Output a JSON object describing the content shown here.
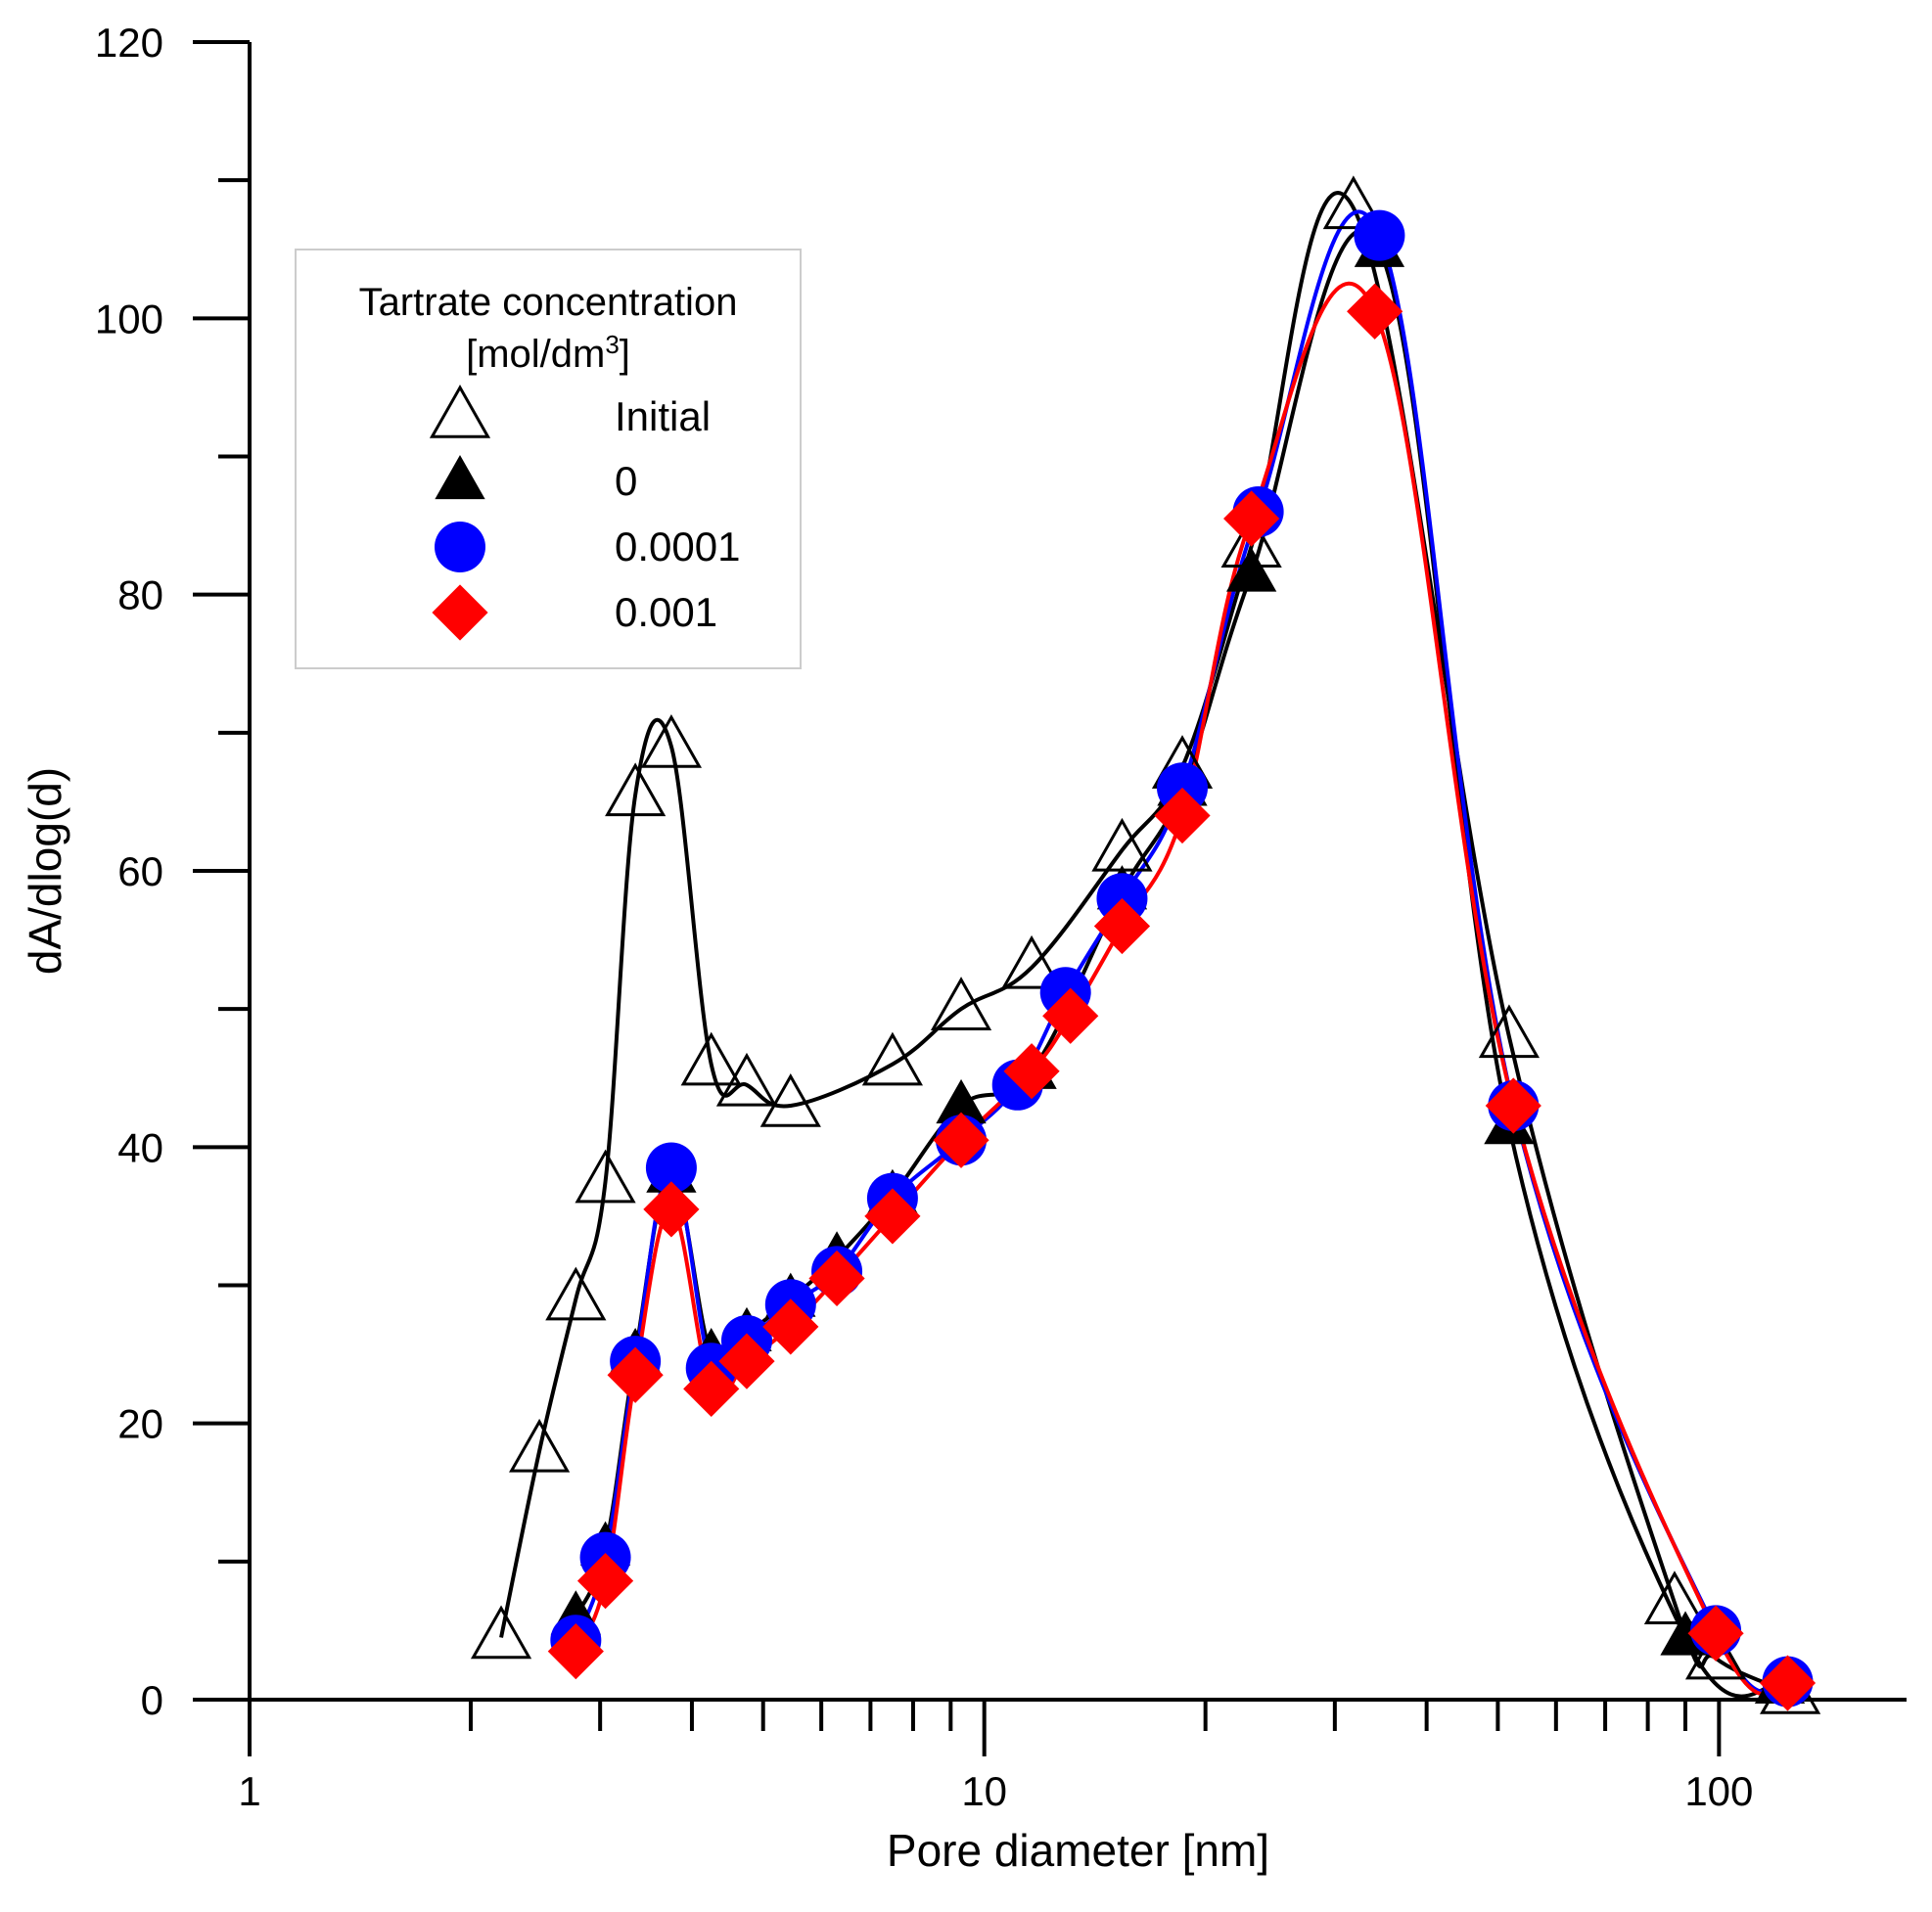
{
  "chart_data": {
    "type": "line",
    "xlabel": "Pore diameter [nm]",
    "ylabel": "dA/dlog(d)",
    "xscale": "log",
    "xlim": [
      1,
      180
    ],
    "ylim": [
      0,
      120
    ],
    "x_ticks": [
      1,
      10,
      100
    ],
    "x_tick_labels": [
      "1",
      "10",
      "100"
    ],
    "y_ticks": [
      0,
      20,
      40,
      60,
      80,
      100,
      120
    ],
    "y_tick_labels": [
      "0",
      "20",
      "40",
      "60",
      "80",
      "100",
      "120"
    ],
    "grid": false,
    "legend": {
      "title_line1": "Tartrate concentration",
      "title_line2_prefix": "[mol/dm",
      "title_line2_sup": "3",
      "title_line2_suffix": "]",
      "placement": "upper-left"
    },
    "series": [
      {
        "name": "Initial",
        "marker": "triangle-open",
        "color": "#000000",
        "line_color": "#000000",
        "x": [
          2.2,
          2.48,
          2.78,
          3.05,
          3.35,
          3.75,
          4.25,
          4.75,
          5.45,
          7.5,
          9.3,
          11.6,
          15.4,
          18.6,
          23.1,
          31.8,
          51.8,
          87.0,
          99.0,
          125.0
        ],
        "y": [
          4.5,
          18,
          29,
          37.5,
          65.5,
          69,
          46,
          44.5,
          43,
          46,
          50,
          53,
          61.5,
          67.5,
          83.5,
          108,
          48,
          7,
          3,
          0.5
        ]
      },
      {
        "name": "0",
        "marker": "triangle-filled",
        "color": "#000000",
        "line_color": "#000000",
        "x": [
          2.78,
          3.05,
          3.35,
          3.75,
          4.25,
          4.75,
          5.45,
          6.3,
          7.5,
          9.3,
          11.6,
          15.4,
          18.6,
          23.1,
          34.5,
          51.8,
          90.0,
          121.0
        ],
        "y": [
          6,
          11,
          25,
          38,
          25,
          26.5,
          29,
          32,
          36.5,
          43,
          45.5,
          58.5,
          66,
          81.5,
          105,
          41.5,
          4.5,
          1
        ]
      },
      {
        "name": "0.0001",
        "marker": "circle",
        "color": "#0000ff",
        "line_color": "#0000ff",
        "x": [
          2.78,
          3.05,
          3.35,
          3.75,
          4.25,
          4.75,
          5.45,
          6.3,
          7.5,
          9.3,
          11.1,
          12.9,
          15.4,
          18.6,
          23.6,
          34.5,
          52.5,
          99.0,
          124.0
        ],
        "y": [
          4.3,
          10.3,
          24.5,
          38.5,
          24,
          26,
          28.6,
          31,
          36.3,
          40.5,
          44.5,
          51.2,
          58,
          66,
          86,
          106,
          43,
          5,
          1.3
        ]
      },
      {
        "name": "0.001",
        "marker": "diamond",
        "color": "#ff0000",
        "line_color": "#ff0000",
        "x": [
          2.78,
          3.05,
          3.35,
          3.75,
          4.25,
          4.75,
          5.45,
          6.3,
          7.5,
          9.3,
          11.6,
          13.1,
          15.4,
          18.6,
          23.1,
          34.0,
          52.5,
          99.0,
          124.0
        ],
        "y": [
          3.5,
          8.6,
          23.5,
          35.5,
          22.5,
          24.5,
          27,
          30.5,
          35,
          40.5,
          45.5,
          49.5,
          56,
          64,
          85.5,
          100.5,
          43,
          4.8,
          1.2
        ]
      }
    ]
  }
}
